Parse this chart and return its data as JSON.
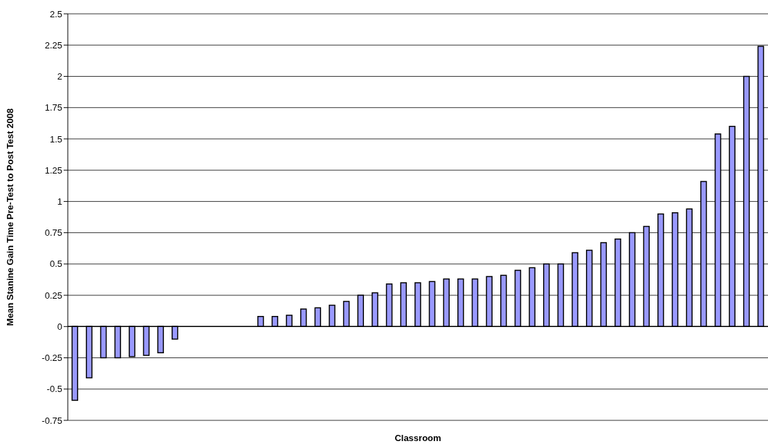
{
  "chart_data": {
    "type": "bar",
    "xlabel": "Classroom",
    "ylabel": "Mean Stanine Gain Time Pre-Test to Post Test 2008",
    "categories": [
      null,
      null,
      null,
      null,
      null,
      null,
      null,
      null,
      null,
      null,
      null,
      null,
      null,
      null,
      null,
      null,
      null,
      null,
      null,
      null,
      null,
      null,
      null,
      null,
      null,
      null,
      null,
      null,
      null,
      null,
      null,
      null,
      null,
      null,
      null,
      null,
      null,
      null,
      null,
      null,
      null,
      null,
      null,
      null,
      null,
      null,
      null,
      null,
      null
    ],
    "values": [
      -0.59,
      -0.41,
      -0.25,
      -0.25,
      -0.24,
      -0.23,
      -0.21,
      -0.1,
      null,
      null,
      null,
      null,
      null,
      0.08,
      0.08,
      0.09,
      0.14,
      0.15,
      0.17,
      0.2,
      0.25,
      0.27,
      0.34,
      0.35,
      0.35,
      0.36,
      0.38,
      0.38,
      0.38,
      0.4,
      0.41,
      0.45,
      0.47,
      0.5,
      0.5,
      0.59,
      0.61,
      0.67,
      0.7,
      0.75,
      0.8,
      0.9,
      0.91,
      0.94,
      1.16,
      1.54,
      1.6,
      2,
      2.24
    ],
    "color": "#9999ff",
    "ylim": [
      -0.75,
      2.5
    ],
    "yticks": [
      -0.75,
      -0.5,
      -0.25,
      0,
      0.25,
      0.5,
      0.75,
      1,
      1.25,
      1.5,
      1.75,
      2,
      2.25,
      2.5
    ],
    "grid": "y",
    "legend": false,
    "tick_labels": "y"
  }
}
